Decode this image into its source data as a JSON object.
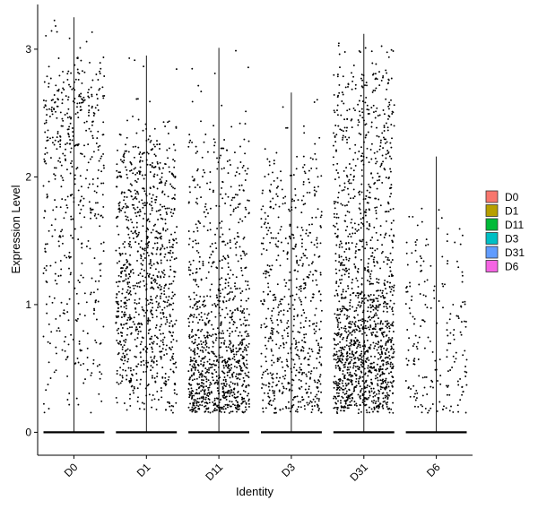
{
  "chart_data": {
    "type": "scatter",
    "subtype": "violin-jitter",
    "title": "",
    "xlabel": "Identity",
    "ylabel": "Expression Level",
    "ylim": [
      -0.18,
      3.35
    ],
    "yticks": [
      0,
      1,
      2,
      3
    ],
    "categories": [
      "D0",
      "D1",
      "D11",
      "D3",
      "D31",
      "D6"
    ],
    "category_max": [
      3.25,
      2.95,
      3.01,
      2.66,
      3.12,
      2.16
    ],
    "category_nonzero_points": [
      520,
      980,
      1050,
      640,
      1500,
      210
    ],
    "grid": false,
    "legend": {
      "position": "right",
      "entries": [
        {
          "label": "D0",
          "color": "#F8766D"
        },
        {
          "label": "D1",
          "color": "#B79F00"
        },
        {
          "label": "D11",
          "color": "#00BA38"
        },
        {
          "label": "D3",
          "color": "#00BFC4"
        },
        {
          "label": "D31",
          "color": "#619CFF"
        },
        {
          "label": "D6",
          "color": "#F564E3"
        }
      ]
    }
  }
}
